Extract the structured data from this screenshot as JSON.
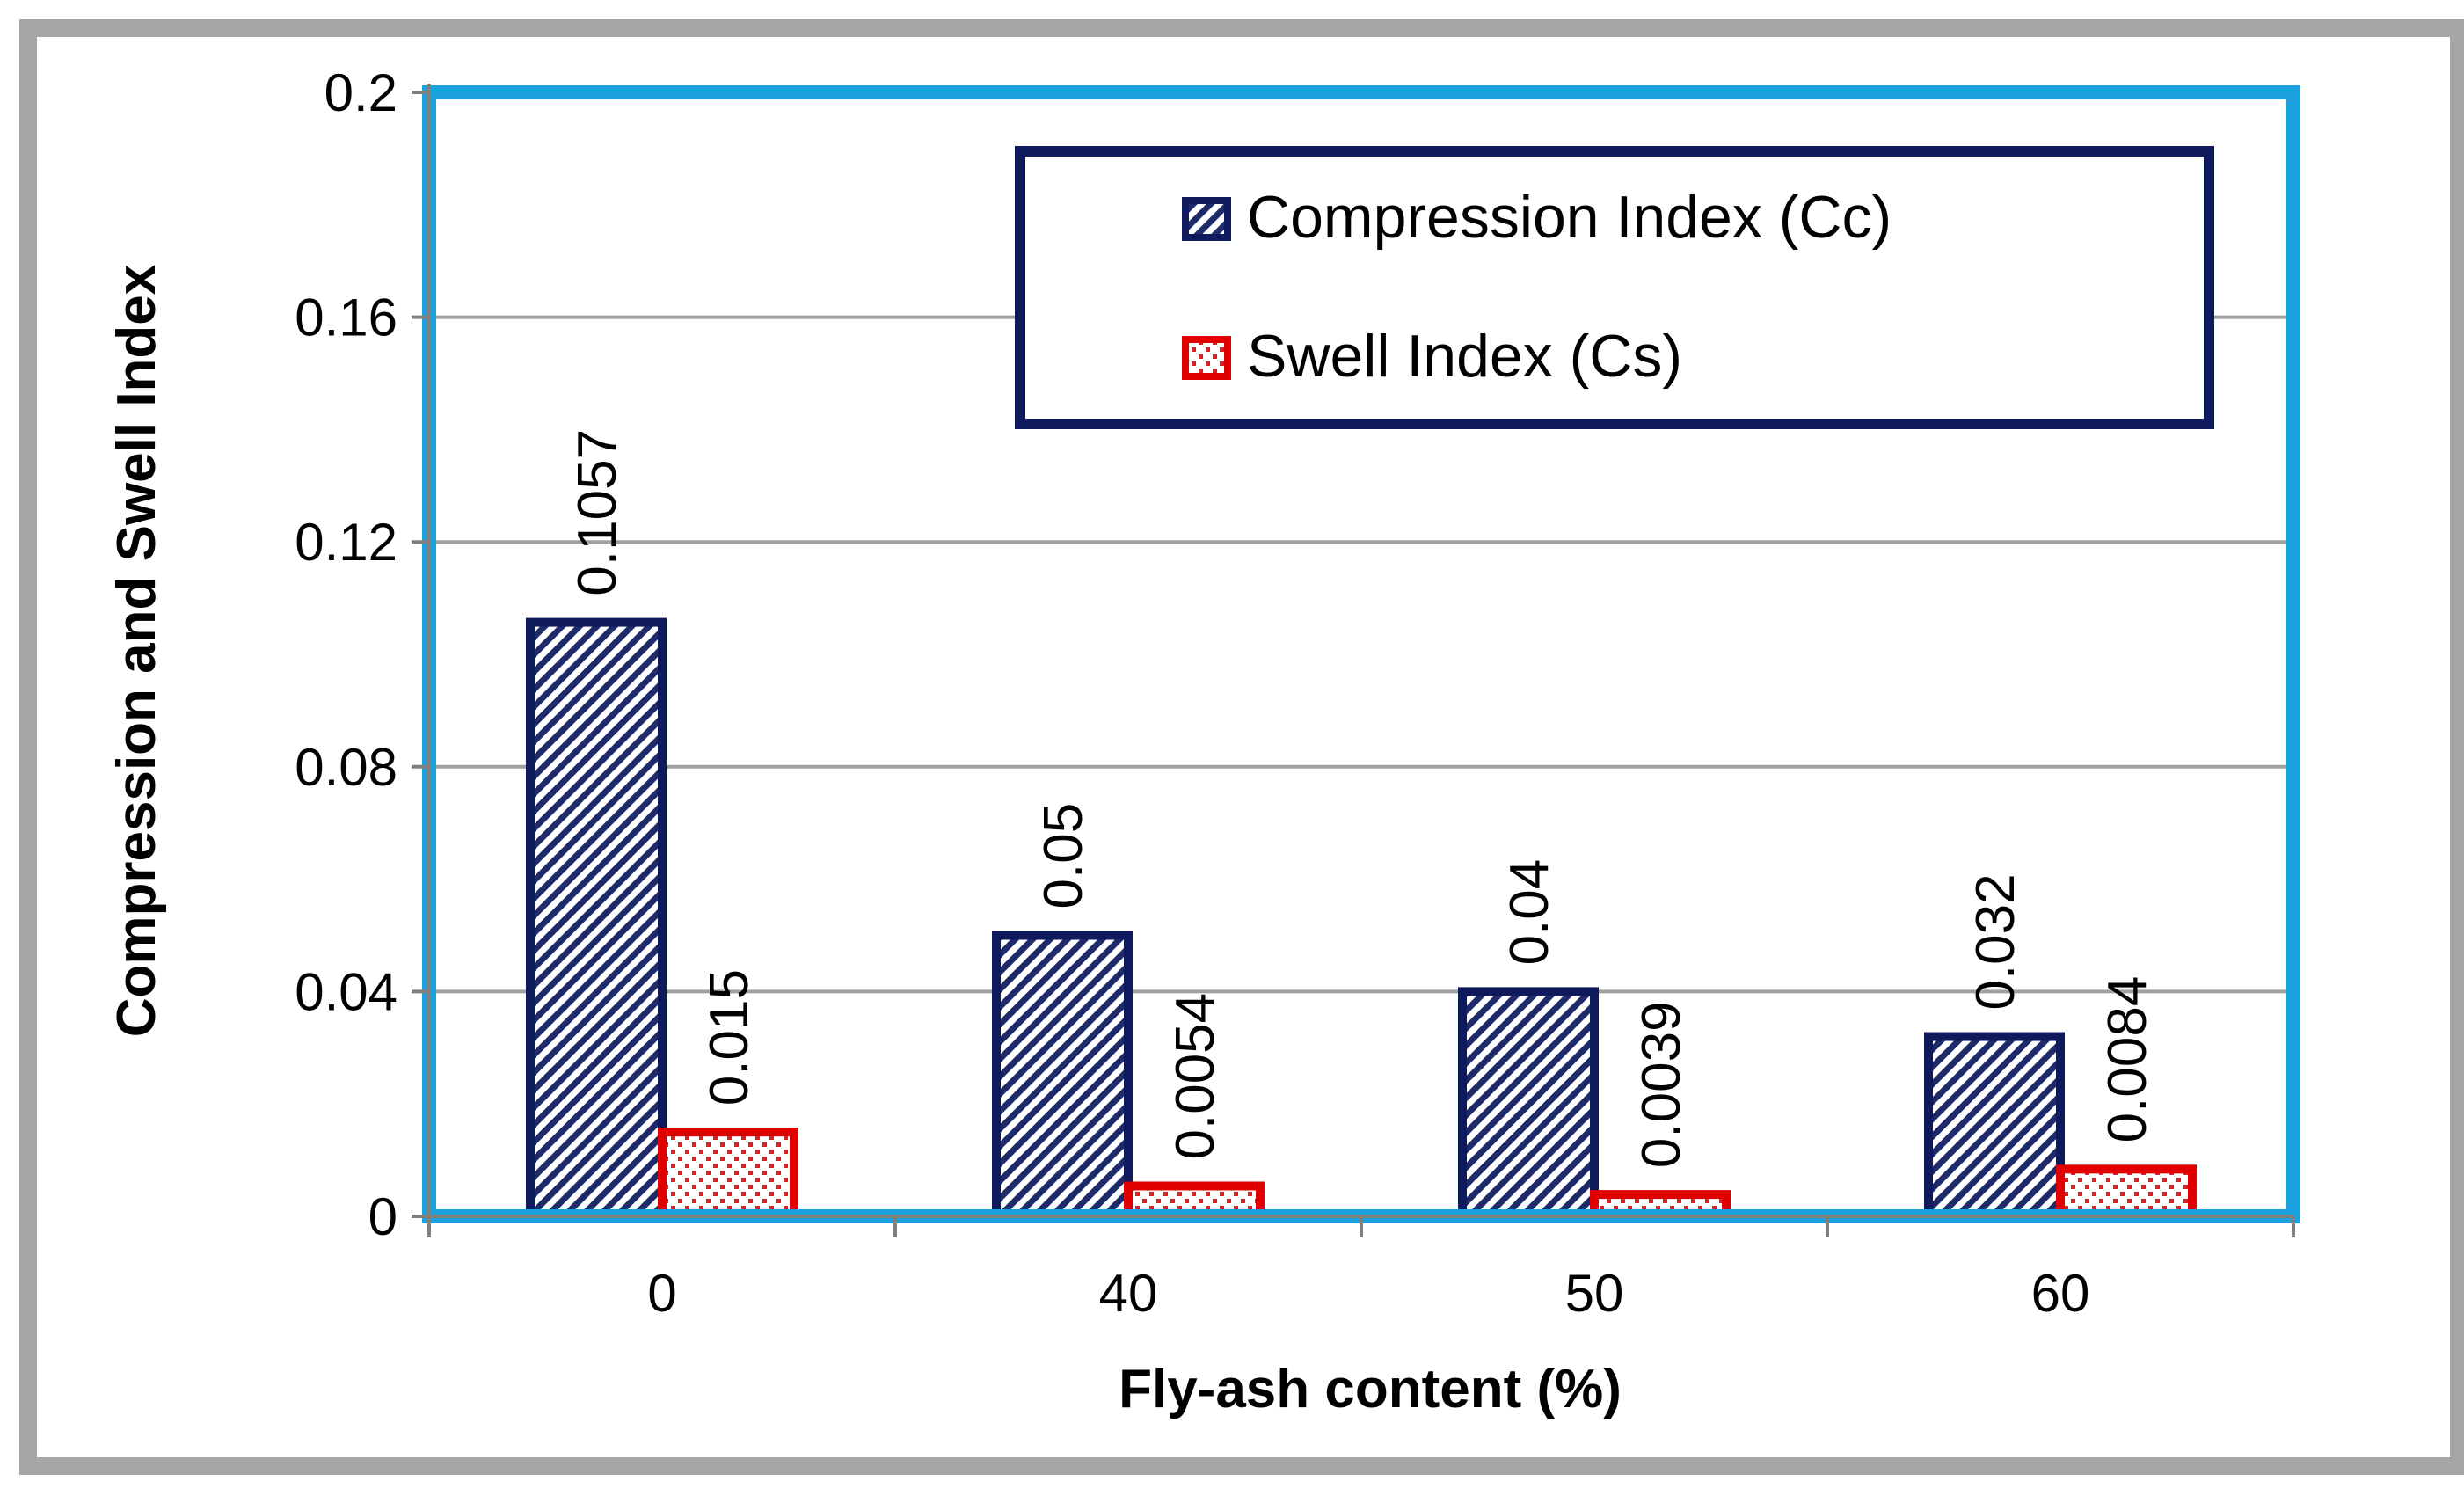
{
  "chart_data": {
    "type": "bar",
    "title": "",
    "xlabel": "Fly-ash content (%)",
    "ylabel": "Compression and Swell Index",
    "categories": [
      "0",
      "40",
      "50",
      "60"
    ],
    "series": [
      {
        "name": "Compression Index (Cc)",
        "values": [
          0.1057,
          0.05,
          0.04,
          0.032
        ],
        "labels": [
          "0.1057",
          "0.05",
          "0.04",
          "0.032"
        ],
        "fill": "#1f2a6b",
        "stroke": "#0e1a5c"
      },
      {
        "name": "Swell Index (Cs)",
        "values": [
          0.015,
          0.0054,
          0.0039,
          0.0084
        ],
        "labels": [
          "0.015",
          "0.0054",
          "0.0039",
          "0.0084"
        ],
        "fill": "#e02020",
        "stroke": "#e00000"
      }
    ],
    "ylim": [
      0,
      0.2
    ],
    "yticks": [
      "0",
      "0.04",
      "0.08",
      "0.12",
      "0.16",
      "0.2"
    ],
    "grid": true,
    "legend_position": "top-right",
    "colors": {
      "plot_border": "#1ba1dd",
      "frame": "#a6a6a6",
      "grid": "#a0a0a0",
      "legend_border": "#0e1a5c"
    }
  }
}
